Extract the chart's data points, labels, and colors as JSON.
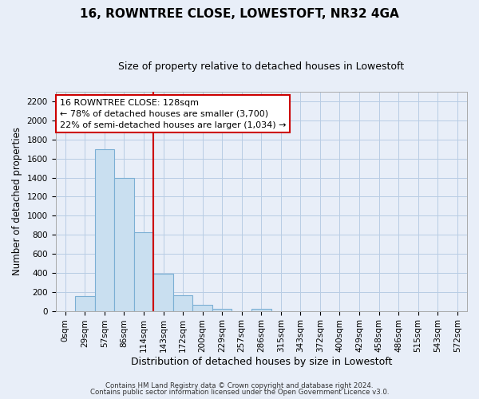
{
  "title": "16, ROWNTREE CLOSE, LOWESTOFT, NR32 4GA",
  "subtitle": "Size of property relative to detached houses in Lowestoft",
  "xlabel": "Distribution of detached houses by size in Lowestoft",
  "ylabel": "Number of detached properties",
  "bar_labels": [
    "0sqm",
    "29sqm",
    "57sqm",
    "86sqm",
    "114sqm",
    "143sqm",
    "172sqm",
    "200sqm",
    "229sqm",
    "257sqm",
    "286sqm",
    "315sqm",
    "343sqm",
    "372sqm",
    "400sqm",
    "429sqm",
    "458sqm",
    "486sqm",
    "515sqm",
    "543sqm",
    "572sqm"
  ],
  "bar_values": [
    0,
    155,
    1700,
    1400,
    830,
    390,
    165,
    65,
    25,
    0,
    25,
    0,
    0,
    0,
    0,
    0,
    0,
    0,
    0,
    0,
    0
  ],
  "bar_color": "#c9dff0",
  "bar_edge_color": "#7bafd4",
  "vline_x_index": 4.5,
  "vline_color": "#cc0000",
  "ylim": [
    0,
    2300
  ],
  "yticks": [
    0,
    200,
    400,
    600,
    800,
    1000,
    1200,
    1400,
    1600,
    1800,
    2000,
    2200
  ],
  "annotation_title": "16 ROWNTREE CLOSE: 128sqm",
  "annotation_line1": "← 78% of detached houses are smaller (3,700)",
  "annotation_line2": "22% of semi-detached houses are larger (1,034) →",
  "annotation_box_facecolor": "#ffffff",
  "annotation_box_edgecolor": "#cc0000",
  "footer_line1": "Contains HM Land Registry data © Crown copyright and database right 2024.",
  "footer_line2": "Contains public sector information licensed under the Open Government Licence v3.0.",
  "background_color": "#e8eef8",
  "grid_color": "#b8cce4",
  "title_fontsize": 11,
  "subtitle_fontsize": 9,
  "tick_fontsize": 7.5,
  "ylabel_fontsize": 8.5,
  "xlabel_fontsize": 9
}
